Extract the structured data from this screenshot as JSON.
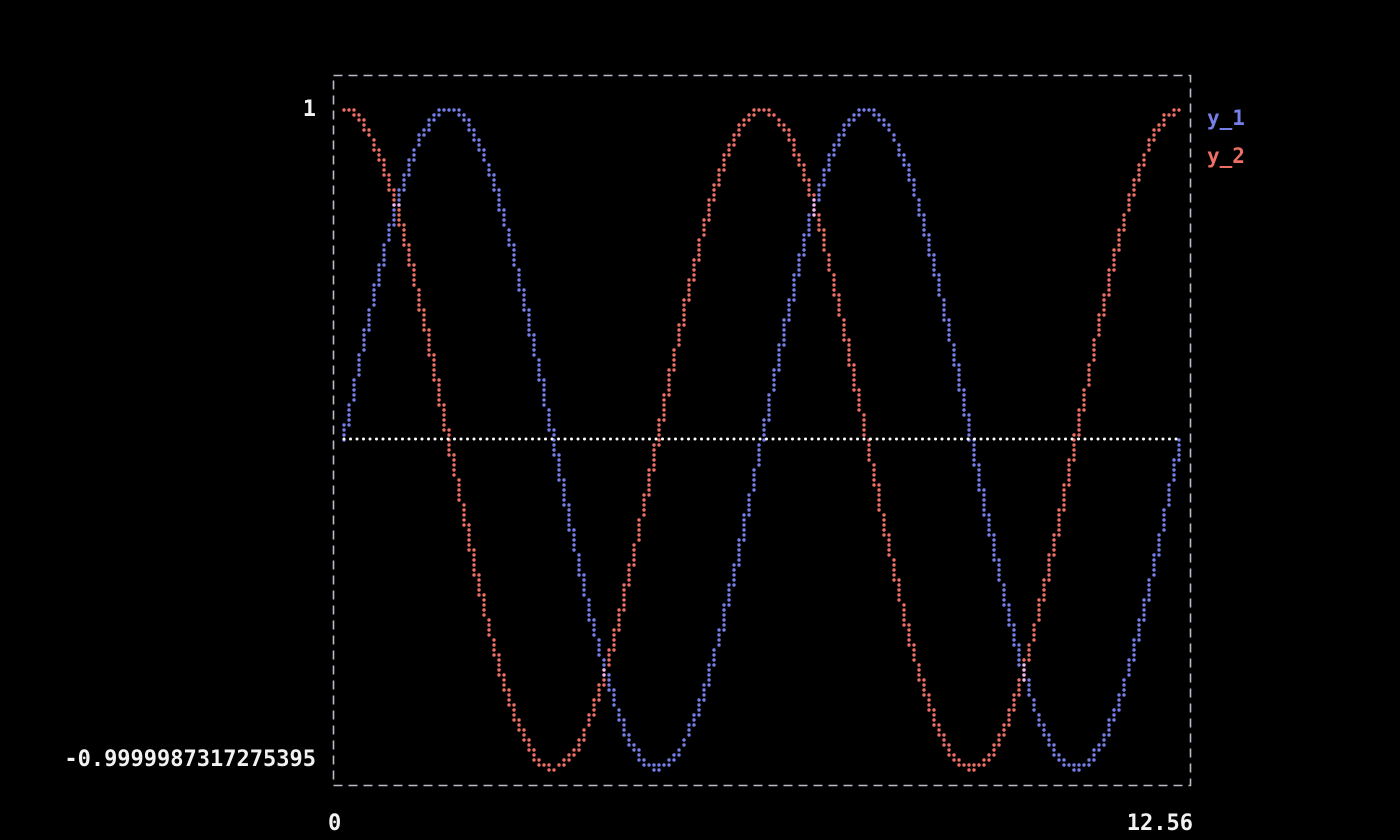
{
  "chart_data": {
    "type": "scatter",
    "title": "",
    "xlabel": "",
    "ylabel": "",
    "x_range": [
      0,
      12.56
    ],
    "y_range": [
      -0.9999987317275395,
      1
    ],
    "x_tick_labels": [
      "0",
      "12.56"
    ],
    "y_tick_labels": [
      "1",
      "-0.9999987317275395"
    ],
    "grid": false,
    "zero_line": true,
    "legend_position": "top-right-outside",
    "style": {
      "background_color": "#000000",
      "border_color": "#b9bdc9",
      "border_style": "dashed",
      "zero_line_color": "#ffffff",
      "text_color": "#f2f2f2",
      "marker": "dot"
    },
    "series": [
      {
        "name": "y_1",
        "color": "#767ee8",
        "function": "sin",
        "key_points": {
          "x": [
            0,
            0.785,
            1.571,
            2.356,
            3.142,
            3.927,
            4.712,
            5.498,
            6.283,
            7.069,
            7.854,
            8.639,
            9.425,
            10.21,
            10.996,
            11.781,
            12.56
          ],
          "y": [
            0,
            0.707,
            1,
            0.707,
            0,
            -0.707,
            -1,
            -0.707,
            0,
            0.707,
            1,
            0.707,
            0,
            -0.707,
            -1,
            -0.707,
            -0.006
          ]
        }
      },
      {
        "name": "y_2",
        "color": "#ee6f64",
        "function": "cos",
        "key_points": {
          "x": [
            0,
            0.785,
            1.571,
            2.356,
            3.142,
            3.927,
            4.712,
            5.498,
            6.283,
            7.069,
            7.854,
            8.639,
            9.425,
            10.21,
            10.996,
            11.781,
            12.56
          ],
          "y": [
            1,
            0.707,
            0,
            -0.707,
            -1,
            -0.707,
            0,
            0.707,
            1,
            0.707,
            0,
            -0.707,
            -1,
            -0.707,
            0,
            0.707,
            1
          ]
        }
      }
    ]
  }
}
